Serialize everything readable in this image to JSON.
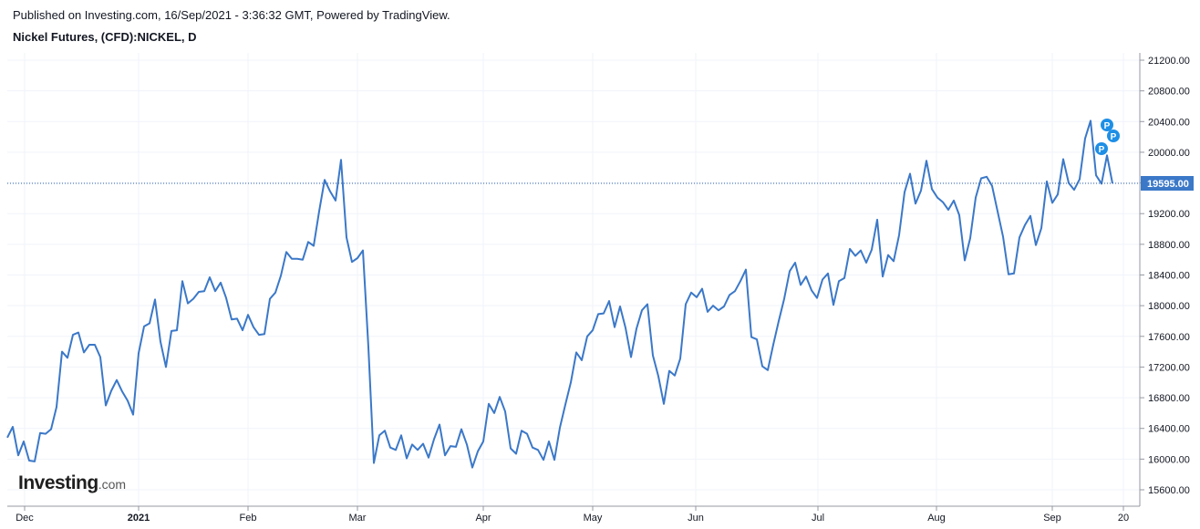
{
  "header": {
    "published": "Published on Investing.com, 16/Sep/2021 - 3:36:32 GMT, Powered by TradingView.",
    "title": "Nickel Futures, (CFD):NICKEL, D"
  },
  "logo": {
    "main": "Investing",
    "tld": ".com"
  },
  "colors": {
    "line": "#3b78c8",
    "last_price_bg": "#3b78c8",
    "marker": "#1e8fe6",
    "axis": "#9598a1",
    "grid": "#f0f3fa"
  },
  "chart_data": {
    "type": "line",
    "title": "Nickel Futures, (CFD):NICKEL, D",
    "x_labels": [
      "Dec",
      "2021",
      "Feb",
      "Mar",
      "Apr",
      "May",
      "Jun",
      "Jul",
      "Aug",
      "Sep",
      "20"
    ],
    "y_ticks": [
      "21200.00",
      "20800.00",
      "20400.00",
      "20000.00",
      "19600.00",
      "19200.00",
      "18800.00",
      "18400.00",
      "18000.00",
      "17600.00",
      "17200.00",
      "16800.00",
      "16400.00",
      "16000.00",
      "15600.00"
    ],
    "ylim": [
      15600,
      21200
    ],
    "last_price": "19595.00",
    "markers": [
      "P",
      "P",
      "P"
    ],
    "values": [
      16280,
      16420,
      16050,
      16230,
      15980,
      15970,
      16340,
      16330,
      16390,
      16680,
      17400,
      17320,
      17620,
      17650,
      17390,
      17490,
      17490,
      17330,
      16700,
      16890,
      17030,
      16880,
      16760,
      16580,
      17380,
      17730,
      17770,
      18080,
      17530,
      17200,
      17670,
      17680,
      18320,
      18030,
      18090,
      18180,
      18190,
      18370,
      18190,
      18300,
      18100,
      17820,
      17830,
      17680,
      17880,
      17720,
      17620,
      17630,
      18090,
      18170,
      18390,
      18700,
      18610,
      18610,
      18600,
      18830,
      18780,
      19230,
      19640,
      19490,
      19370,
      19900,
      18890,
      18570,
      18620,
      18720,
      17460,
      15950,
      16310,
      16370,
      16150,
      16120,
      16310,
      16010,
      16190,
      16120,
      16200,
      16020,
      16260,
      16450,
      16050,
      16170,
      16160,
      16390,
      16190,
      15890,
      16100,
      16230,
      16720,
      16600,
      16810,
      16620,
      16140,
      16070,
      16370,
      16330,
      16150,
      16120,
      15990,
      16230,
      15990,
      16410,
      16710,
      17000,
      17390,
      17290,
      17600,
      17680,
      17890,
      17900,
      18060,
      17720,
      17990,
      17710,
      17330,
      17700,
      17940,
      18020,
      17350,
      17080,
      16720,
      17150,
      17090,
      17310,
      18020,
      18170,
      18110,
      18220,
      17920,
      18000,
      17940,
      17990,
      18140,
      18190,
      18320,
      18470,
      17590,
      17560,
      17210,
      17160,
      17490,
      17800,
      18090,
      18450,
      18560,
      18270,
      18380,
      18200,
      18100,
      18340,
      18420,
      18010,
      18320,
      18360,
      18740,
      18650,
      18720,
      18560,
      18730,
      19120,
      18380,
      18660,
      18580,
      18920,
      19480,
      19720,
      19330,
      19500,
      19890,
      19520,
      19410,
      19350,
      19250,
      19370,
      19180,
      18590,
      18880,
      19410,
      19660,
      19680,
      19560,
      19230,
      18900,
      18410,
      18420,
      18890,
      19050,
      19170,
      18790,
      19010,
      19620,
      19340,
      19450,
      19910,
      19600,
      19510,
      19650,
      20180,
      20410,
      19700,
      19590,
      19960,
      19595
    ]
  }
}
